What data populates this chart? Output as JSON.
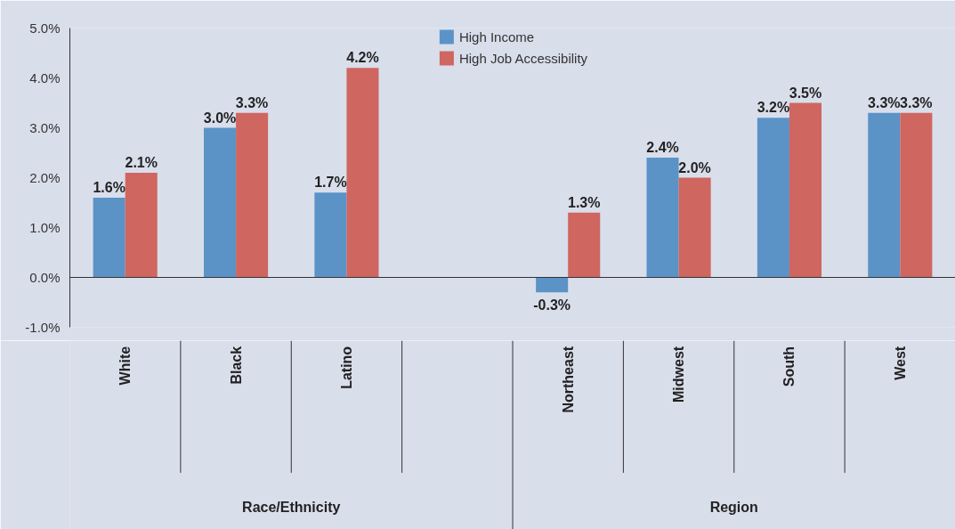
{
  "chart_data": {
    "type": "bar",
    "categories": [
      "White",
      "Black",
      "Latino",
      null,
      "Northeast",
      "Midwest",
      "South",
      "West"
    ],
    "series": [
      {
        "name": "High Income",
        "color": "#5b93c7",
        "values": [
          1.6,
          3.0,
          1.7,
          null,
          -0.3,
          2.4,
          3.2,
          3.3
        ],
        "value_labels": [
          "1.6%",
          "3.0%",
          "1.7%",
          null,
          "-0.3%",
          "2.4%",
          "3.2%",
          "3.3%"
        ]
      },
      {
        "name": "High Job Accessibility",
        "color": "#cf6660",
        "values": [
          2.1,
          3.3,
          4.2,
          null,
          1.3,
          2.0,
          3.5,
          3.3
        ],
        "value_labels": [
          "2.1%",
          "3.3%",
          "4.2%",
          null,
          "1.3%",
          "2.0%",
          "3.5%",
          "3.3%"
        ]
      }
    ],
    "ylim": [
      -1.0,
      5.0
    ],
    "yticks": [
      {
        "value": -1,
        "label": "-1.0%"
      },
      {
        "value": 0,
        "label": "0.0%"
      },
      {
        "value": 1,
        "label": "1.0%"
      },
      {
        "value": 2,
        "label": "2.0%"
      },
      {
        "value": 3,
        "label": "3.0%"
      },
      {
        "value": 4,
        "label": "4.0%"
      },
      {
        "value": 5,
        "label": "5.0%"
      }
    ],
    "legend": "top",
    "annotations": [
      "Race/Ethnicity",
      "Region"
    ]
  }
}
